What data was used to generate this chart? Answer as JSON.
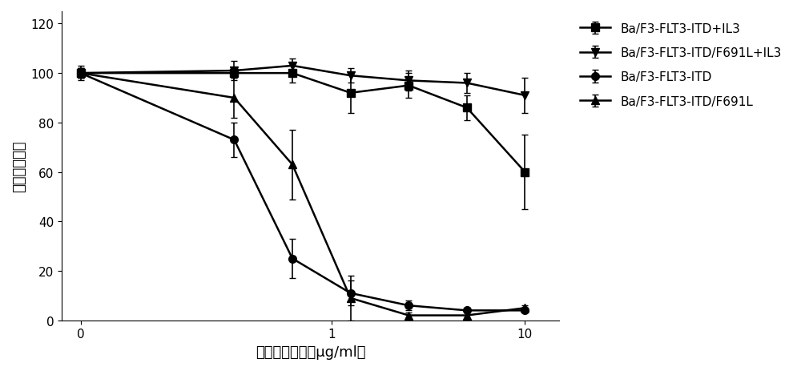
{
  "x_values": [
    0.05,
    0.3125,
    0.625,
    1.25,
    2.5,
    5,
    10
  ],
  "x_tick_positions": [
    0.05,
    1,
    10
  ],
  "x_tick_labels": [
    "0",
    "1",
    "10"
  ],
  "series": [
    {
      "label": "Ba/F3-FLT3-ITD+IL3",
      "marker": "s",
      "y": [
        100,
        100,
        100,
        92,
        95,
        86,
        60
      ],
      "yerr": [
        2,
        2,
        4,
        8,
        5,
        5,
        15
      ],
      "color": "#000000"
    },
    {
      "label": "Ba/F3-FLT3-ITD/F691L+IL3",
      "marker": "v",
      "y": [
        100,
        101,
        103,
        99,
        97,
        96,
        91
      ],
      "yerr": [
        2,
        4,
        3,
        3,
        4,
        4,
        7
      ],
      "color": "#000000"
    },
    {
      "label": "Ba/F3-FLT3-ITD",
      "marker": "o",
      "y": [
        100,
        73,
        25,
        11,
        6,
        4,
        4
      ],
      "yerr": [
        2,
        7,
        8,
        5,
        2,
        1,
        1
      ],
      "color": "#000000"
    },
    {
      "label": "Ba/F3-FLT3-ITD/F691L",
      "marker": "^",
      "y": [
        100,
        90,
        63,
        9,
        2,
        2,
        5
      ],
      "yerr": [
        3,
        8,
        14,
        9,
        1,
        1,
        1
      ],
      "color": "#000000"
    }
  ],
  "xlabel": "异甘草素浓度（μg/ml）",
  "ylabel": "细胞存活率％",
  "ylim": [
    0,
    125
  ],
  "yticks": [
    0,
    20,
    40,
    60,
    80,
    100,
    120
  ],
  "background_color": "#ffffff",
  "linewidth": 1.8,
  "markersize": 7,
  "capsize": 3,
  "legend_fontsize": 11,
  "axis_fontsize": 13,
  "tick_fontsize": 11
}
